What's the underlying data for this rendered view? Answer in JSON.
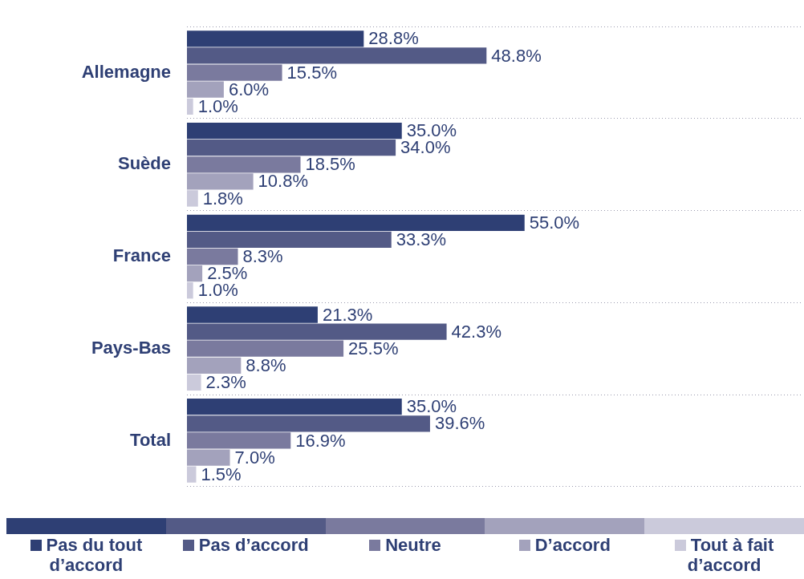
{
  "chart_data": {
    "type": "bar",
    "orientation": "horizontal",
    "relative": false,
    "categories": [
      "Allemagne",
      "Suède",
      "France",
      "Pays-Bas",
      "Total"
    ],
    "xlim": [
      0,
      100
    ],
    "tick_labels": "y",
    "grid": "y",
    "legend": "bottom",
    "series": [
      {
        "name": "Pas du tout d’accord",
        "color": "#2e3f74",
        "values": [
          28.8,
          35.0,
          55.0,
          21.3,
          35.0
        ],
        "value_labels": [
          "28.8%",
          "35.0%",
          "55.0%",
          "21.3%",
          "35.0%"
        ]
      },
      {
        "name": "Pas d’accord",
        "color": "#535a86",
        "values": [
          48.8,
          34.0,
          33.3,
          42.3,
          39.6
        ],
        "value_labels": [
          "48.8%",
          "34.0%",
          "33.3%",
          "42.3%",
          "39.6%"
        ]
      },
      {
        "name": "Neutre",
        "color": "#7a7a9e",
        "values": [
          15.5,
          18.5,
          8.3,
          25.5,
          16.9
        ],
        "value_labels": [
          "15.5%",
          "18.5%",
          "8.3%",
          "25.5%",
          "16.9%"
        ]
      },
      {
        "name": "D’accord",
        "color": "#a3a2bc",
        "values": [
          6.0,
          10.8,
          2.5,
          8.8,
          7.0
        ],
        "value_labels": [
          "6.0%",
          "10.8%",
          "2.5%",
          "8.8%",
          "7.0%"
        ]
      },
      {
        "name": "Tout à fait d’accord",
        "color": "#cbcadb",
        "values": [
          1.0,
          1.8,
          1.0,
          2.3,
          1.5
        ],
        "value_labels": [
          "1.0%",
          "1.8%",
          "1.0%",
          "2.3%",
          "1.5%"
        ]
      }
    ]
  }
}
